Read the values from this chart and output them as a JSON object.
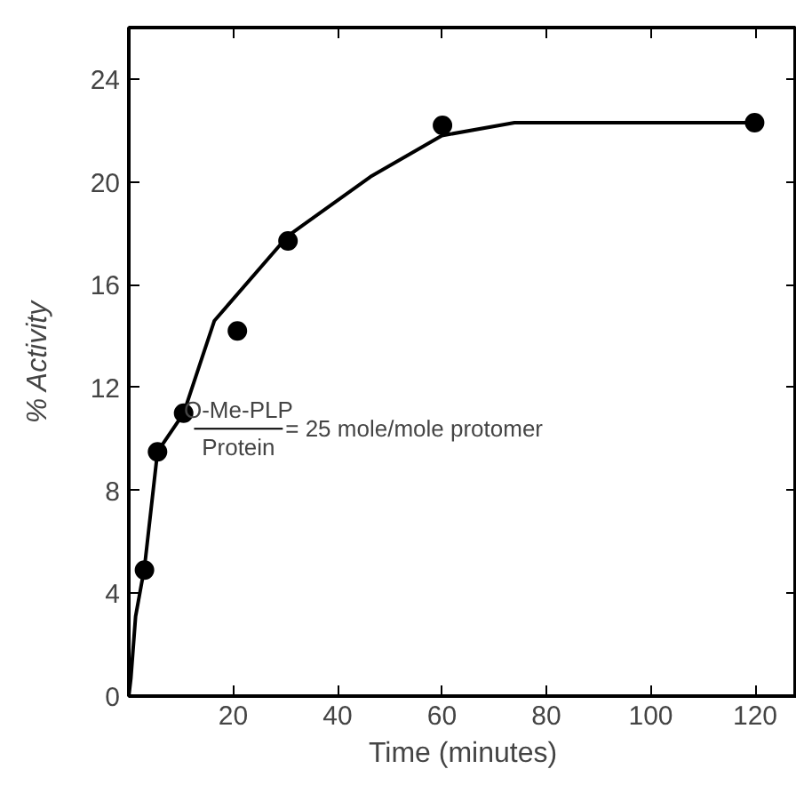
{
  "chart_data": {
    "type": "scatter",
    "xlabel": "Time (minutes)",
    "ylabel": "% Activity",
    "annotations": [
      "O-Me-PLP",
      "Protein",
      "= 25 mole/mole protomer"
    ],
    "xlim": [
      0,
      128
    ],
    "ylim": [
      0,
      26
    ],
    "xticks": [
      20,
      40,
      60,
      80,
      100,
      120
    ],
    "yticks": [
      0,
      4,
      8,
      12,
      16,
      20,
      24
    ],
    "grid": false,
    "series": [
      {
        "marker": "circle",
        "color": "#000000",
        "x": [
          3,
          5.5,
          10.5,
          20.8,
          30.5,
          60.1,
          119.9
        ],
        "values": [
          4.9,
          9.5,
          11.0,
          14.2,
          17.7,
          22.2,
          22.3
        ]
      },
      {
        "type": "line",
        "marker": "none",
        "color": "#000000",
        "x": [
          0,
          0.4,
          1.3,
          3,
          5.5,
          10.5,
          14.1,
          16.4,
          30.5,
          46.3,
          60,
          73.9,
          120
        ],
        "values": [
          0,
          0.7,
          3.1,
          5,
          9.5,
          11,
          13.2,
          14.6,
          17.9,
          20.2,
          21.8,
          22.3,
          22.3
        ]
      }
    ]
  }
}
